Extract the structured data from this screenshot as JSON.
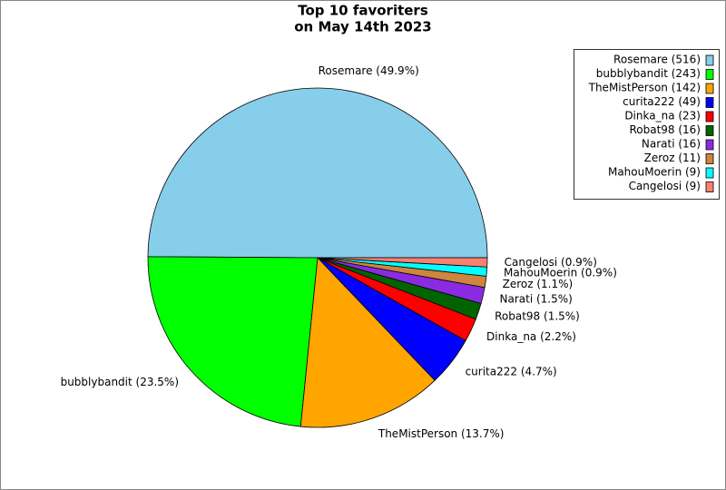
{
  "chart_data": {
    "type": "pie",
    "title": [
      "Top 10 favoriters",
      "on May 14th 2023"
    ],
    "categories": [
      "Rosemare",
      "bubblybandit",
      "TheMistPerson",
      "curita222",
      "Dinka_na",
      "Robat98",
      "Narati",
      "Zeroz",
      "MahouMoerin",
      "Cangelosi"
    ],
    "values": [
      516,
      243,
      142,
      49,
      23,
      16,
      16,
      11,
      9,
      9
    ],
    "value_labels": [
      "Rosemare (49.9%)",
      "bubblybandit (23.5%)",
      "TheMistPerson (13.7%)",
      "curita222 (4.7%)",
      "Dinka_na (2.2%)",
      "Robat98 (1.5%)",
      "Narati (1.5%)",
      "Zeroz (1.1%)",
      "MahouMoerin (0.9%)",
      "Cangelosi (0.9%)"
    ],
    "legend_labels": [
      "Rosemare (516)",
      "bubblybandit (243)",
      "TheMistPerson (142)",
      "curita222 (49)",
      "Dinka_na (23)",
      "Robat98 (16)",
      "Narati (16)",
      "Zeroz (11)",
      "MahouMoerin (9)",
      "Cangelosi (9)"
    ],
    "colors": [
      "#87ceeb",
      "#00ff00",
      "#ffa500",
      "#0000ff",
      "#ff0000",
      "#006400",
      "#8a2be2",
      "#cd853f",
      "#00ffff",
      "#fa8072"
    ],
    "legend_position": "upper right"
  }
}
